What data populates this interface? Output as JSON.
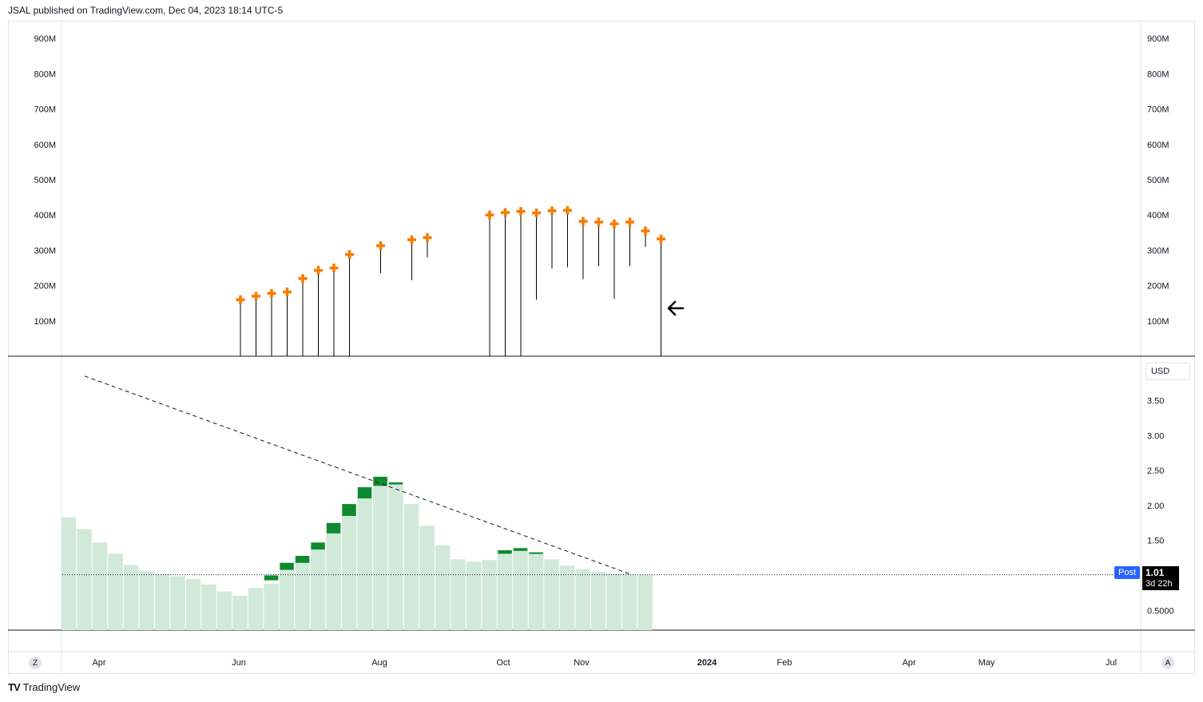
{
  "header": {
    "published_text": "JSAL published on TradingView.com, Dec 04, 2023 18:14 UTC-5"
  },
  "footer": {
    "brand": "TradingView",
    "brand_mark": "TV"
  },
  "controls": {
    "zoom_label": "Z",
    "auto_label": "A",
    "currency": "USD"
  },
  "last_price": {
    "label": "Post",
    "price": "1.01",
    "countdown": "3d 22h"
  },
  "colors": {
    "marker": "#f57c00",
    "bar_fill": "#d1e9d9",
    "bar_up": "#0d8a2e",
    "line": "#000000",
    "post_bg": "#2962ff"
  },
  "chart_data": [
    {
      "type": "scatter",
      "pane": "upper",
      "y_ticks": [
        "900M",
        "800M",
        "700M",
        "600M",
        "500M",
        "400M",
        "300M",
        "200M",
        "100M"
      ],
      "ylim": [
        0,
        940
      ],
      "y_unit": "M",
      "points": [
        {
          "x": "2023-06-02",
          "y": 160,
          "low": 0
        },
        {
          "x": "2023-06-09",
          "y": 170,
          "low": 0
        },
        {
          "x": "2023-06-16",
          "y": 178,
          "low": 0
        },
        {
          "x": "2023-06-23",
          "y": 182,
          "low": 0
        },
        {
          "x": "2023-06-30",
          "y": 220,
          "low": 0
        },
        {
          "x": "2023-07-07",
          "y": 243,
          "low": 0
        },
        {
          "x": "2023-07-14",
          "y": 250,
          "low": 0
        },
        {
          "x": "2023-07-21",
          "y": 288,
          "low": 0
        },
        {
          "x": "2023-08-04",
          "y": 313,
          "low": 235
        },
        {
          "x": "2023-08-18",
          "y": 330,
          "low": 215
        },
        {
          "x": "2023-08-25",
          "y": 336,
          "low": 280
        },
        {
          "x": "2023-09-22",
          "y": 400,
          "low": 0
        },
        {
          "x": "2023-09-29",
          "y": 407,
          "low": 0
        },
        {
          "x": "2023-10-06",
          "y": 410,
          "low": 0
        },
        {
          "x": "2023-10-13",
          "y": 406,
          "low": 160
        },
        {
          "x": "2023-10-20",
          "y": 412,
          "low": 248
        },
        {
          "x": "2023-10-27",
          "y": 413,
          "low": 252
        },
        {
          "x": "2023-11-03",
          "y": 382,
          "low": 218
        },
        {
          "x": "2023-11-10",
          "y": 380,
          "low": 255
        },
        {
          "x": "2023-11-17",
          "y": 375,
          "low": 162
        },
        {
          "x": "2023-11-24",
          "y": 380,
          "low": 255
        },
        {
          "x": "2023-12-01",
          "y": 355,
          "low": 310
        },
        {
          "x": "2023-12-08",
          "y": 332,
          "low": 0
        }
      ]
    },
    {
      "type": "bar",
      "pane": "lower",
      "y_ticks": [
        "3.50",
        "3.00",
        "2.50",
        "2.00",
        "1.50",
        "0.5000"
      ],
      "ylim": [
        0.35,
        3.95
      ],
      "x_ticks": [
        "Apr",
        "Jun",
        "Aug",
        "Oct",
        "Nov",
        "2024",
        "Feb",
        "Apr",
        "May",
        "Jul"
      ],
      "categories": [
        "2023-03-17",
        "2023-03-24",
        "2023-03-31",
        "2023-04-07",
        "2023-04-14",
        "2023-04-21",
        "2023-04-28",
        "2023-05-05",
        "2023-05-12",
        "2023-05-19",
        "2023-05-26",
        "2023-06-02",
        "2023-06-09",
        "2023-06-16",
        "2023-06-23",
        "2023-06-30",
        "2023-07-07",
        "2023-07-14",
        "2023-07-21",
        "2023-07-28",
        "2023-08-04",
        "2023-08-11",
        "2023-08-18",
        "2023-08-25",
        "2023-09-01",
        "2023-09-08",
        "2023-09-15",
        "2023-09-22",
        "2023-09-29",
        "2023-10-06",
        "2023-10-13",
        "2023-10-20",
        "2023-10-27",
        "2023-11-03",
        "2023-11-10",
        "2023-11-17",
        "2023-11-24",
        "2023-12-01"
      ],
      "values": [
        1.83,
        1.66,
        1.47,
        1.31,
        1.15,
        1.06,
        1.02,
        0.99,
        0.95,
        0.87,
        0.77,
        0.71,
        0.82,
        0.88,
        1.08,
        1.18,
        1.37,
        1.6,
        1.85,
        2.1,
        2.28,
        2.3,
        2.02,
        1.71,
        1.43,
        1.23,
        1.2,
        1.22,
        1.31,
        1.35,
        1.31,
        1.23,
        1.14,
        1.09,
        1.05,
        1.03,
        1.02,
        1.01
      ],
      "up_caps": [
        {
          "x": "2023-06-16",
          "from": 0.93,
          "to": 1.0
        },
        {
          "x": "2023-06-23",
          "from": 1.08,
          "to": 1.18
        },
        {
          "x": "2023-06-30",
          "from": 1.18,
          "to": 1.28
        },
        {
          "x": "2023-07-07",
          "from": 1.37,
          "to": 1.47
        },
        {
          "x": "2023-07-14",
          "from": 1.6,
          "to": 1.75
        },
        {
          "x": "2023-07-21",
          "from": 1.85,
          "to": 2.02
        },
        {
          "x": "2023-07-28",
          "from": 2.1,
          "to": 2.26
        },
        {
          "x": "2023-08-04",
          "from": 2.28,
          "to": 2.41
        },
        {
          "x": "2023-08-11",
          "from": 2.3,
          "to": 2.33
        },
        {
          "x": "2023-09-29",
          "from": 1.31,
          "to": 1.36
        },
        {
          "x": "2023-10-06",
          "from": 1.35,
          "to": 1.39
        },
        {
          "x": "2023-10-13",
          "from": 1.31,
          "to": 1.33
        }
      ],
      "price_line": 1.01,
      "trendline": {
        "from": {
          "x": "2023-03-24",
          "y": 3.85
        },
        "to": {
          "x": "2023-11-24",
          "y": 1.02
        }
      }
    }
  ]
}
